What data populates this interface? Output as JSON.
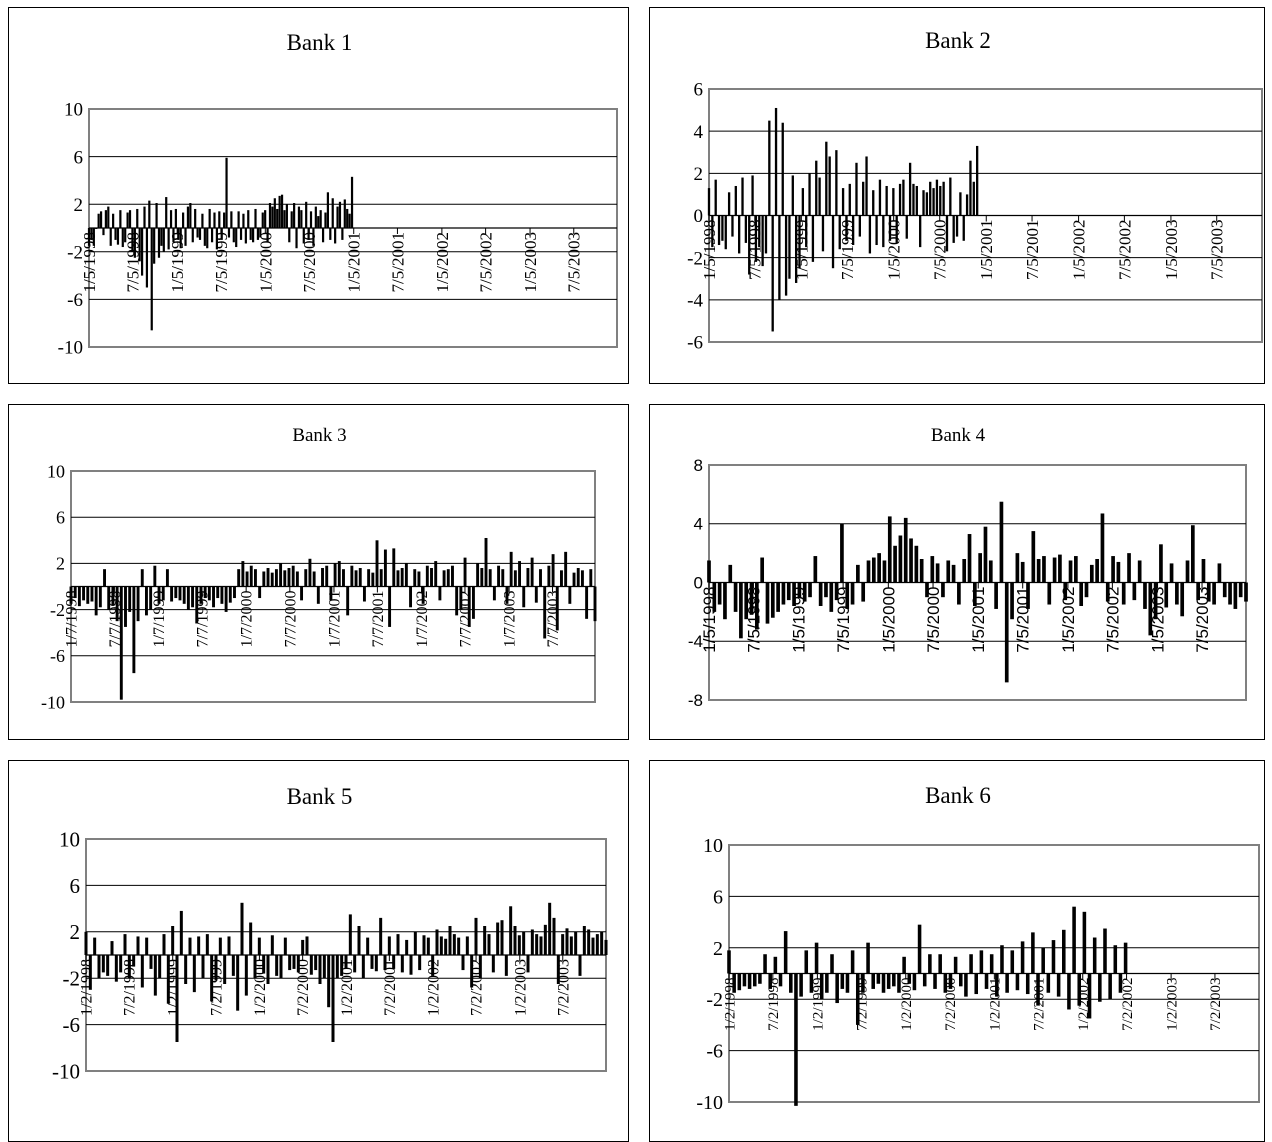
{
  "chart_data": [
    {
      "type": "bar",
      "title": "Bank 1",
      "ylim": [
        -10,
        10
      ],
      "y_ticks": [
        "10",
        "6",
        "2",
        "-2",
        "-6",
        "-10"
      ],
      "x_range": [
        "1998-01-05",
        "2003-12-31"
      ],
      "x_tick_labels": [
        "1/5/1998",
        "7/5/1998",
        "1/5/1999",
        "7/5/1999",
        "1/5/2000",
        "7/5/2000",
        "1/5/2001",
        "7/5/2001",
        "1/5/2002",
        "7/5/2002",
        "1/5/2003",
        "7/5/2003"
      ],
      "grid": true,
      "data_start": "1998-01-05",
      "data_end": "2000-12-29",
      "series": [
        {
          "values": [
            -1.5,
            -1,
            -1.5,
            0,
            1.2,
            1.4,
            -0.6,
            1.5,
            1.8,
            -1.5,
            1.2,
            -1,
            -1.4,
            1.5,
            -1.6,
            -1.2,
            1.3,
            1.5,
            -2,
            -2.5,
            1.6,
            -2.8,
            -4,
            1.8,
            -5,
            2.3,
            -8.6,
            -3,
            2.1,
            -2.5,
            -1.5,
            -2,
            2.6,
            -1.8,
            1.5,
            -1.2,
            1.6,
            -1,
            -1.7,
            1.3,
            -1.5,
            1.8,
            2.1,
            -1.2,
            1.6,
            -0.8,
            -1,
            1.2,
            -1.5,
            -1.7,
            1.6,
            -1.2,
            1.3,
            -1.8,
            1.4,
            -1,
            1.3,
            5.9,
            -0.8,
            1.4,
            -1.2,
            -1.6,
            1.4,
            -1,
            1.2,
            -1.3,
            1.5,
            -1,
            -1.2,
            1.6,
            -1,
            -0.8,
            1.3,
            1.5,
            -1.2,
            2.1,
            1.8,
            2.5,
            1.6,
            2.7,
            2.8,
            1.5,
            2,
            -1.2,
            1.4,
            2.1,
            -1.7,
            1.8,
            1.5,
            -1.3,
            2.2,
            -1,
            1.4,
            -1.5,
            1.8,
            1,
            1.5,
            -1.2,
            1.3,
            3,
            -1,
            2.5,
            -1.3,
            1.8,
            2.2,
            -1,
            2.4,
            1.6,
            1.2,
            4.3
          ]
        }
      ]
    },
    {
      "type": "bar",
      "title": "Bank 2",
      "ylim": [
        -6,
        6
      ],
      "y_ticks": [
        "6",
        "4",
        "2",
        "0",
        "-2",
        "-4",
        "-6"
      ],
      "x_range": [
        "1998-01-05",
        "2003-12-31"
      ],
      "x_tick_labels": [
        "1/5/1998",
        "7/5/1998",
        "1/5/1999",
        "7/5/1999",
        "1/5/2000",
        "7/5/2000",
        "1/5/2001",
        "7/5/2001",
        "1/5/2002",
        "7/5/2002",
        "1/5/2003",
        "7/5/2003"
      ],
      "grid": true,
      "data_start": "1998-01-05",
      "data_end": "2000-11-30",
      "series": [
        {
          "values": [
            1.3,
            -1.5,
            1.7,
            -1.4,
            -1.2,
            -1.6,
            1.1,
            -1,
            1.4,
            -1.8,
            1.8,
            -1.3,
            -2.8,
            1.9,
            -2.2,
            -1.5,
            -2.4,
            -1.8,
            4.5,
            -5.5,
            5.1,
            -4,
            4.4,
            -3.8,
            -3,
            1.9,
            -3.2,
            -2.5,
            1.3,
            -1.5,
            2,
            -2.2,
            2.6,
            1.8,
            -1.7,
            3.5,
            2.8,
            -2.5,
            3.1,
            -1.6,
            1.3,
            -1.2,
            1.5,
            -1.4,
            2.5,
            -1,
            1.6,
            2.8,
            -1.8,
            1.2,
            -1.4,
            1.7,
            -1.5,
            1.4,
            -1.2,
            1.3,
            -1.3,
            1.5,
            1.7,
            -1.1,
            2.5,
            1.5,
            1.4,
            -1.5,
            1.2,
            1.1,
            1.6,
            1.3,
            1.7,
            1.4,
            1.6,
            -1.7,
            1.8,
            -1.3,
            -1,
            1.1,
            -1.2,
            1,
            2.6,
            1.6,
            3.3
          ]
        }
      ]
    },
    {
      "type": "bar",
      "title": "Bank 3",
      "ylim": [
        -10,
        10
      ],
      "y_ticks": [
        "10",
        "6",
        "2",
        "-2",
        "-6",
        "-10"
      ],
      "x_range": [
        "1998-01-07",
        "2003-12-31"
      ],
      "x_tick_labels": [
        "1/7/1998",
        "7/7/1998",
        "1/7/1999",
        "7/7/1999",
        "1/7/2000",
        "7/7/2000",
        "1/7/2001",
        "7/7/2001",
        "1/7/2002",
        "7/7/2002",
        "1/7/2003",
        "7/7/2003"
      ],
      "grid": true,
      "data_start": "1998-01-07",
      "data_end": "2003-12-31",
      "series": [
        {
          "values": [
            -1.5,
            -1,
            -1.7,
            -1.2,
            -1.5,
            -1.3,
            -2.5,
            -1.8,
            1.5,
            -2,
            -1.6,
            -3,
            -9.8,
            -3.5,
            -2.2,
            -7.5,
            -3,
            1.5,
            -2.5,
            -2,
            1.8,
            -1.5,
            -1.2,
            1.5,
            -1.3,
            -1,
            -1.2,
            -1.5,
            -2,
            -1.8,
            -3.2,
            -1.5,
            -1,
            -1.2,
            -1.8,
            -1,
            -1.5,
            -2.2,
            -1.4,
            -1,
            1.5,
            2.2,
            1.3,
            1.8,
            1.5,
            -1,
            1.3,
            1.6,
            1.2,
            1.5,
            2,
            1.4,
            1.6,
            1.8,
            1.3,
            -1.2,
            1.5,
            2.4,
            1.3,
            -1.5,
            1.6,
            1.8,
            -1.2,
            2,
            2.2,
            1.5,
            -2.5,
            1.8,
            1.4,
            1.6,
            -1.3,
            1.5,
            1.2,
            4,
            1.5,
            3.2,
            -3.5,
            3.3,
            1.4,
            1.6,
            2,
            -1.8,
            1.5,
            1.3,
            -1.5,
            1.8,
            1.6,
            2.2,
            -1.2,
            1.4,
            1.5,
            1.8,
            -2.5,
            -2,
            2.5,
            -3.5,
            -2.8,
            2,
            1.6,
            4.2,
            1.5,
            -1.2,
            1.8,
            1.5,
            -1.5,
            3,
            1.4,
            2.2,
            -1.8,
            1.6,
            2.5,
            -1.4,
            1.5,
            -4.5,
            1.8,
            2.8,
            -3.8,
            1.4,
            3,
            -1.5,
            1.2,
            1.6,
            1.4,
            -2.8,
            1.5,
            -3
          ]
        }
      ]
    },
    {
      "type": "bar",
      "title": "Bank 4",
      "ylim": [
        -8,
        8
      ],
      "y_ticks": [
        "8",
        "4",
        "0",
        "-4",
        "-8"
      ],
      "x_range": [
        "1998-01-05",
        "2003-12-31"
      ],
      "x_tick_labels": [
        "1/5/1998",
        "7/5/1998",
        "1/5/1999",
        "7/5/1999",
        "1/5/2000",
        "7/5/2000",
        "1/5/2001",
        "7/5/2001",
        "1/5/2002",
        "7/5/2002",
        "1/5/2003",
        "7/5/2003"
      ],
      "grid": true,
      "data_start": "1998-01-05",
      "data_end": "2003-12-31",
      "series": [
        {
          "values": [
            1.5,
            -2,
            -1.5,
            -2.5,
            1.2,
            -2,
            -3.8,
            -2.5,
            -2.2,
            -3.2,
            1.7,
            -2.8,
            -2.4,
            -2,
            -1.5,
            -1.2,
            -1.6,
            -1,
            -1.3,
            -1,
            1.8,
            -1.6,
            -1,
            -2,
            -1.2,
            4,
            -1.8,
            -1.5,
            1.2,
            -1.3,
            1.5,
            1.7,
            2,
            1.5,
            4.5,
            2.5,
            3.2,
            4.4,
            3,
            2.5,
            1.6,
            -1,
            1.8,
            1.3,
            -1,
            1.5,
            1.2,
            -1.5,
            1.6,
            3.3,
            -1.6,
            2,
            3.8,
            1.5,
            -1.8,
            5.5,
            -6.8,
            -2.5,
            2,
            1.4,
            -1.8,
            3.5,
            1.6,
            1.8,
            -1.5,
            1.7,
            1.9,
            -1.2,
            1.5,
            1.8,
            -1.6,
            -1,
            1.2,
            1.6,
            4.7,
            -1.3,
            1.8,
            1.4,
            -1.5,
            2,
            -1.2,
            1.5,
            -1.8,
            -3.6,
            -2.5,
            2.6,
            -1.7,
            1.3,
            -1.5,
            -2.3,
            1.5,
            3.9,
            -1.2,
            1.6,
            -1.3,
            -1.5,
            1.3,
            -1,
            -1.5,
            -1.8,
            -1,
            -1.3
          ]
        }
      ]
    },
    {
      "type": "bar",
      "title": "Bank 5",
      "ylim": [
        -10,
        10
      ],
      "y_ticks": [
        "10",
        "6",
        "2",
        "-2",
        "-6",
        "-10"
      ],
      "x_range": [
        "1998-01-02",
        "2003-12-31"
      ],
      "x_tick_labels": [
        "1/2/1998",
        "7/2/1998",
        "1/2/1999",
        "7/2/1999",
        "1/2/2000",
        "7/2/2000",
        "1/2/2001",
        "7/2/2001",
        "1/2/2002",
        "7/2/2002",
        "1/2/2003",
        "7/2/2003"
      ],
      "grid": true,
      "data_start": "1998-01-02",
      "data_end": "2003-12-31",
      "series": [
        {
          "values": [
            2,
            -3,
            1.5,
            -2,
            -1.5,
            -1.8,
            1.2,
            -2.3,
            -1.5,
            1.8,
            -2,
            -1,
            1.6,
            -2.8,
            1.5,
            -1.2,
            -3.5,
            -2,
            1.8,
            -4.2,
            2.5,
            -7.5,
            3.8,
            -2.5,
            1.5,
            -3.2,
            1.6,
            -2,
            1.8,
            -4,
            -2.2,
            1.5,
            -2.5,
            1.6,
            -1.8,
            -4.8,
            4.5,
            -3.5,
            2.8,
            -2,
            1.5,
            -1.6,
            -2.5,
            1.7,
            -1.8,
            -2,
            1.5,
            -1.3,
            -1.2,
            -1.5,
            1.3,
            1.6,
            -1.7,
            -1.3,
            -2.5,
            -2,
            -4.5,
            -7.5,
            -2,
            -1.8,
            -1.2,
            3.5,
            -1.5,
            2.5,
            -2,
            1.5,
            -1.2,
            -1.4,
            3.2,
            -1.3,
            1.6,
            -1.2,
            1.8,
            -1.5,
            1.3,
            -1.7,
            2,
            -1.3,
            1.7,
            1.5,
            -1.8,
            2.2,
            1.6,
            1.4,
            2.5,
            1.8,
            1.5,
            -1.3,
            1.6,
            -2.8,
            3.2,
            -2,
            2.5,
            1.8,
            -1.5,
            2.8,
            3,
            -1.8,
            4.2,
            2.5,
            1.7,
            2,
            -1.5,
            2.2,
            1.8,
            1.6,
            2.6,
            4.5,
            3.2,
            -2.5,
            1.8,
            2.3,
            1.6,
            2,
            -1.8,
            2.5,
            2.2,
            1.5,
            1.8,
            2,
            1.3
          ]
        }
      ]
    },
    {
      "type": "bar",
      "title": "Bank 6",
      "ylim": [
        -10,
        10
      ],
      "y_ticks": [
        "10",
        "6",
        "2",
        "-2",
        "-6",
        "-10"
      ],
      "x_range": [
        "1998-01-02",
        "2003-12-31"
      ],
      "x_tick_labels": [
        "1/2/1998",
        "7/2/1998",
        "1/2/1999",
        "7/2/1999",
        "1/2/2000",
        "7/2/2000",
        "1/2/2001",
        "7/2/2001",
        "1/2/2002",
        "7/2/2002",
        "1/2/2003",
        "7/2/2003"
      ],
      "grid": true,
      "data_start": "1998-01-02",
      "data_end": "2002-06-28",
      "series": [
        {
          "values": [
            1.8,
            -1.5,
            -1.3,
            -1,
            -1.2,
            -1,
            -0.8,
            1.5,
            -1.2,
            1.3,
            -1,
            3.3,
            -1.5,
            -10.3,
            -1.8,
            1.8,
            -1.5,
            2.4,
            -2,
            -1.5,
            1.5,
            -2.3,
            -1.2,
            -1.5,
            1.8,
            -4,
            -1.5,
            2.4,
            -1.2,
            -0.8,
            -1.5,
            -1.2,
            -1,
            -1.5,
            1.3,
            -0.8,
            -1.3,
            3.8,
            -1,
            1.5,
            -1.2,
            1.5,
            -1.5,
            -1.2,
            1.3,
            -1,
            -1.8,
            1.5,
            -1.6,
            1.8,
            -1.2,
            1.5,
            -1.8,
            2.2,
            -1.5,
            1.8,
            -1.3,
            2.5,
            -1.6,
            3.2,
            -2.5,
            2,
            -1.5,
            2.6,
            -1.8,
            3.4,
            -2.8,
            5.2,
            -2.5,
            4.8,
            -3.5,
            2.8,
            -2.2,
            3.5,
            -2,
            2.2,
            -1.5,
            2.4
          ]
        }
      ]
    }
  ]
}
